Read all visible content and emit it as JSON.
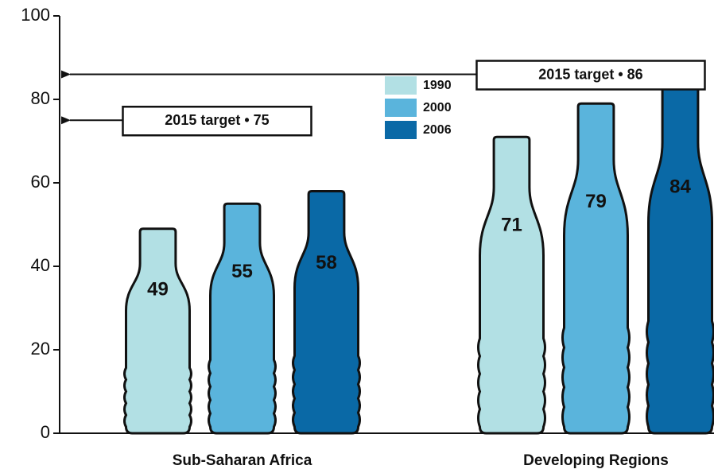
{
  "chart_data": {
    "type": "bottle",
    "categories": [
      "Sub-Saharan Africa",
      "Developing Regions"
    ],
    "series": [
      {
        "name": "1990",
        "color": "#b2e0e4",
        "values": [
          49,
          71
        ]
      },
      {
        "name": "2000",
        "color": "#5ab4dc",
        "values": [
          55,
          79
        ]
      },
      {
        "name": "2006",
        "color": "#0a69a6",
        "values": [
          58,
          84
        ]
      }
    ],
    "targets": [
      {
        "label": "2015 target • 75",
        "value": 75
      },
      {
        "label": "2015 target • 86",
        "value": 86
      }
    ],
    "ylim": [
      0,
      100
    ],
    "yticks": [
      0,
      20,
      40,
      60,
      80,
      100
    ]
  }
}
